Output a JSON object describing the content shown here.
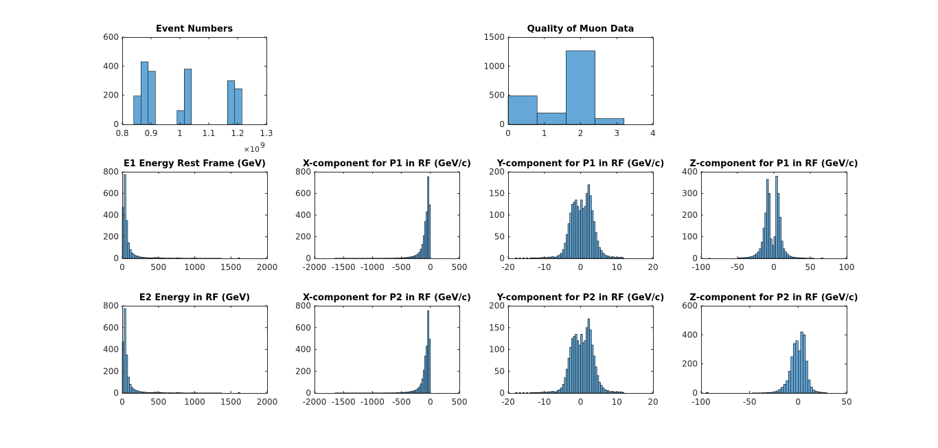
{
  "figure": {
    "background": "#ffffff",
    "bar_color": "#65a8d8",
    "edge_color": "#000000"
  },
  "chart_data": [
    {
      "type": "bar",
      "title": "Event Numbers",
      "xlim": [
        0.8,
        1.3
      ],
      "ylim": [
        0,
        600
      ],
      "xticks": [
        0.8,
        0.9,
        1,
        1.1,
        1.2,
        1.3
      ],
      "xtick_labels": [
        "0.8",
        "0.9",
        "1",
        "1.1",
        "1.2",
        "1.3"
      ],
      "yticks": [
        0,
        200,
        400,
        600
      ],
      "ytick_labels": [
        "0",
        "200",
        "400",
        "600"
      ],
      "x_exponent_label": "×10",
      "x_exponent_power": "9",
      "bin_edges": [
        0.84,
        0.865,
        0.89,
        0.915,
        0.94,
        0.965,
        0.99,
        1.015,
        1.04,
        1.065,
        1.09,
        1.115,
        1.14,
        1.165,
        1.19,
        1.215,
        1.24
      ],
      "values": [
        195,
        430,
        365,
        0,
        0,
        0,
        95,
        380,
        0,
        0,
        0,
        0,
        0,
        300,
        245,
        0
      ]
    },
    {
      "type": "bar",
      "title": "Quality of Muon Data",
      "xlim": [
        0,
        4
      ],
      "ylim": [
        0,
        1500
      ],
      "xticks": [
        0,
        1,
        2,
        3,
        4
      ],
      "xtick_labels": [
        "0",
        "1",
        "2",
        "3",
        "4"
      ],
      "yticks": [
        0,
        500,
        1000,
        1500
      ],
      "ytick_labels": [
        "0",
        "500",
        "1000",
        "1500"
      ],
      "bin_edges": [
        0,
        0.8,
        1.6,
        2.4,
        3.2
      ],
      "values": [
        490,
        195,
        1265,
        100
      ]
    },
    {
      "type": "bar",
      "title": "E1 Energy Rest Frame (GeV)",
      "xlim": [
        0,
        2000
      ],
      "ylim": [
        0,
        800
      ],
      "xticks": [
        0,
        500,
        1000,
        1500,
        2000
      ],
      "xtick_labels": [
        "0",
        "500",
        "1000",
        "1500",
        "2000"
      ],
      "yticks": [
        0,
        200,
        400,
        600,
        800
      ],
      "ytick_labels": [
        "0",
        "200",
        "400",
        "600",
        "800"
      ],
      "bin_edges": [
        0,
        25,
        50,
        75,
        100,
        125,
        150,
        175,
        200,
        225,
        250,
        275,
        300,
        325,
        350,
        375,
        400,
        425,
        450,
        475,
        500,
        525,
        550,
        575,
        600,
        625,
        650,
        675,
        700,
        725,
        750,
        775,
        800,
        825,
        850,
        875,
        900,
        925,
        950,
        975,
        1000,
        1025,
        1050,
        1075,
        1100,
        1125,
        1150,
        1175,
        1200,
        1225,
        1250,
        1275,
        1300,
        1325,
        1350,
        1375,
        1400,
        1425,
        1450,
        1475,
        1500,
        1525,
        1550,
        1575,
        1600,
        1625,
        1650
      ],
      "values": [
        470,
        775,
        350,
        145,
        80,
        50,
        35,
        25,
        20,
        15,
        12,
        10,
        8,
        6,
        5,
        5,
        4,
        6,
        8,
        7,
        5,
        4,
        3,
        3,
        2,
        2,
        3,
        2,
        2,
        2,
        5,
        3,
        2,
        2,
        1,
        1,
        1,
        1,
        2,
        2,
        3,
        1,
        1,
        1,
        1,
        1,
        1,
        1,
        1,
        1,
        1,
        1,
        1,
        1,
        1,
        0,
        0,
        0,
        0,
        0,
        0,
        0,
        0,
        0,
        4,
        0
      ]
    },
    {
      "type": "bar",
      "title": "X-component for P1 in RF (GeV/c)",
      "xlim": [
        -2000,
        500
      ],
      "ylim": [
        0,
        800
      ],
      "xticks": [
        -2000,
        -1500,
        -1000,
        -500,
        0,
        500
      ],
      "xtick_labels": [
        "-2000",
        "-1500",
        "-1000",
        "-500",
        "0",
        "500"
      ],
      "yticks": [
        0,
        200,
        400,
        600,
        800
      ],
      "ytick_labels": [
        "0",
        "200",
        "400",
        "600",
        "800"
      ],
      "bin_edges": [
        -1650,
        -1625,
        -1600,
        -1575,
        -1550,
        -1525,
        -1500,
        -1475,
        -1450,
        -1425,
        -1400,
        -1375,
        -1350,
        -1325,
        -1300,
        -1275,
        -1250,
        -1225,
        -1200,
        -1175,
        -1150,
        -1125,
        -1100,
        -1075,
        -1050,
        -1025,
        -1000,
        -975,
        -950,
        -925,
        -900,
        -875,
        -850,
        -825,
        -800,
        -775,
        -750,
        -725,
        -700,
        -675,
        -650,
        -625,
        -600,
        -575,
        -550,
        -525,
        -500,
        -475,
        -450,
        -425,
        -400,
        -375,
        -350,
        -325,
        -300,
        -275,
        -250,
        -225,
        -200,
        -175,
        -150,
        -125,
        -100,
        -75,
        -50,
        -25,
        0
      ],
      "values": [
        1,
        2,
        1,
        1,
        1,
        1,
        2,
        1,
        1,
        1,
        1,
        1,
        1,
        1,
        1,
        1,
        1,
        1,
        1,
        1,
        1,
        1,
        1,
        1,
        1,
        1,
        2,
        1,
        1,
        1,
        1,
        1,
        1,
        1,
        2,
        2,
        1,
        2,
        1,
        2,
        2,
        2,
        3,
        3,
        3,
        4,
        5,
        6,
        7,
        8,
        10,
        12,
        14,
        17,
        20,
        25,
        32,
        42,
        58,
        85,
        130,
        210,
        340,
        430,
        755,
        495
      ]
    },
    {
      "type": "bar",
      "title": "Y-component for P1 in RF (GeV/c)",
      "xlim": [
        -20,
        20
      ],
      "ylim": [
        0,
        200
      ],
      "xticks": [
        -20,
        -10,
        0,
        10,
        20
      ],
      "xtick_labels": [
        "-20",
        "-10",
        "0",
        "10",
        "20"
      ],
      "yticks": [
        0,
        50,
        100,
        150,
        200
      ],
      "ytick_labels": [
        "0",
        "50",
        "100",
        "150",
        "200"
      ],
      "bin_edges": [
        -18,
        -17.5,
        -17,
        -16.5,
        -16,
        -15.5,
        -15,
        -14.5,
        -14,
        -13.5,
        -13,
        -12.5,
        -12,
        -11.5,
        -11,
        -10.5,
        -10,
        -9.5,
        -9,
        -8.5,
        -8,
        -7.5,
        -7,
        -6.5,
        -6,
        -5.5,
        -5,
        -4.5,
        -4,
        -3.5,
        -3,
        -2.5,
        -2,
        -1.5,
        -1,
        -0.5,
        0,
        0.5,
        1,
        1.5,
        2,
        2.5,
        3,
        3.5,
        4,
        4.5,
        5,
        5.5,
        6,
        6.5,
        7,
        7.5,
        8,
        8.5,
        9,
        9.5,
        10,
        10.5,
        11,
        11.5,
        12
      ],
      "values": [
        1,
        0,
        1,
        0,
        1,
        0,
        1,
        0,
        1,
        1,
        1,
        1,
        1,
        1,
        2,
        2,
        2,
        2,
        3,
        3,
        4,
        3,
        3,
        6,
        8,
        12,
        20,
        35,
        55,
        80,
        105,
        125,
        130,
        135,
        120,
        110,
        135,
        115,
        120,
        150,
        170,
        145,
        110,
        85,
        60,
        40,
        25,
        18,
        12,
        8,
        6,
        5,
        3,
        4,
        3,
        2,
        3,
        2,
        3,
        1
      ]
    },
    {
      "type": "bar",
      "title": "Z-component for P1 in RF (GeV/c)",
      "xlim": [
        -100,
        100
      ],
      "ylim": [
        0,
        400
      ],
      "xticks": [
        -100,
        -50,
        0,
        50,
        100
      ],
      "xtick_labels": [
        "-100",
        "-50",
        "0",
        "50",
        "100"
      ],
      "yticks": [
        0,
        100,
        200,
        300,
        400
      ],
      "ytick_labels": [
        "0",
        "100",
        "200",
        "300",
        "400"
      ],
      "bin_edges": [
        -90,
        -87.5,
        -85,
        -82.5,
        -80,
        -77.5,
        -75,
        -72.5,
        -70,
        -67.5,
        -65,
        -62.5,
        -60,
        -57.5,
        -55,
        -52.5,
        -50,
        -47.5,
        -45,
        -42.5,
        -40,
        -37.5,
        -35,
        -32.5,
        -30,
        -27.5,
        -25,
        -22.5,
        -20,
        -17.5,
        -15,
        -12.5,
        -10,
        -7.5,
        -5,
        -2.5,
        0,
        2.5,
        5,
        7.5,
        10,
        12.5,
        15,
        17.5,
        20,
        22.5,
        25,
        27.5,
        30,
        32.5,
        35,
        37.5,
        40,
        42.5,
        45,
        47.5,
        50,
        52.5,
        55,
        57.5,
        60,
        62.5,
        65,
        67.5
      ],
      "values": [
        1,
        0,
        0,
        0,
        0,
        0,
        0,
        0,
        0,
        0,
        0,
        0,
        0,
        0,
        0,
        0,
        2,
        2,
        3,
        3,
        4,
        5,
        6,
        8,
        10,
        15,
        22,
        30,
        45,
        75,
        140,
        210,
        365,
        300,
        90,
        60,
        100,
        380,
        300,
        190,
        80,
        45,
        30,
        20,
        12,
        8,
        6,
        5,
        4,
        3,
        2,
        2,
        2,
        1,
        1,
        1,
        1,
        1,
        0,
        0,
        0,
        0,
        2
      ]
    },
    {
      "type": "bar",
      "title": "E2 Energy in RF (GeV)",
      "xlim": [
        0,
        2000
      ],
      "ylim": [
        0,
        800
      ],
      "xticks": [
        0,
        500,
        1000,
        1500,
        2000
      ],
      "xtick_labels": [
        "0",
        "500",
        "1000",
        "1500",
        "2000"
      ],
      "yticks": [
        0,
        200,
        400,
        600,
        800
      ],
      "ytick_labels": [
        "0",
        "200",
        "400",
        "600",
        "800"
      ],
      "bin_edges": [
        0,
        25,
        50,
        75,
        100,
        125,
        150,
        175,
        200,
        225,
        250,
        275,
        300,
        325,
        350,
        375,
        400,
        425,
        450,
        475,
        500,
        525,
        550,
        575,
        600,
        625,
        650,
        675,
        700,
        725,
        750,
        775,
        800,
        825,
        850,
        875,
        900,
        925,
        950,
        975,
        1000,
        1025,
        1050,
        1075,
        1100,
        1125,
        1150,
        1175,
        1200,
        1225,
        1250,
        1275,
        1300,
        1325,
        1350,
        1375,
        1400,
        1425,
        1450,
        1475,
        1500,
        1525,
        1550,
        1575,
        1600,
        1625,
        1650
      ],
      "values": [
        470,
        775,
        350,
        145,
        80,
        50,
        35,
        25,
        20,
        15,
        12,
        10,
        8,
        6,
        5,
        5,
        4,
        6,
        8,
        7,
        5,
        4,
        3,
        3,
        2,
        2,
        3,
        2,
        2,
        2,
        5,
        3,
        2,
        2,
        1,
        1,
        1,
        1,
        2,
        2,
        3,
        1,
        1,
        1,
        1,
        1,
        1,
        1,
        1,
        1,
        1,
        1,
        1,
        1,
        1,
        0,
        0,
        0,
        0,
        0,
        0,
        0,
        0,
        0,
        4,
        0
      ]
    },
    {
      "type": "bar",
      "title": "X-component for P2 in RF (GeV/c)",
      "xlim": [
        -2000,
        500
      ],
      "ylim": [
        0,
        800
      ],
      "xticks": [
        -2000,
        -1500,
        -1000,
        -500,
        0,
        500
      ],
      "xtick_labels": [
        "-2000",
        "-1500",
        "-1000",
        "-500",
        "0",
        "500"
      ],
      "yticks": [
        0,
        200,
        400,
        600,
        800
      ],
      "ytick_labels": [
        "0",
        "200",
        "400",
        "600",
        "800"
      ],
      "bin_edges": [
        -1650,
        -1625,
        -1600,
        -1575,
        -1550,
        -1525,
        -1500,
        -1475,
        -1450,
        -1425,
        -1400,
        -1375,
        -1350,
        -1325,
        -1300,
        -1275,
        -1250,
        -1225,
        -1200,
        -1175,
        -1150,
        -1125,
        -1100,
        -1075,
        -1050,
        -1025,
        -1000,
        -975,
        -950,
        -925,
        -900,
        -875,
        -850,
        -825,
        -800,
        -775,
        -750,
        -725,
        -700,
        -675,
        -650,
        -625,
        -600,
        -575,
        -550,
        -525,
        -500,
        -475,
        -450,
        -425,
        -400,
        -375,
        -350,
        -325,
        -300,
        -275,
        -250,
        -225,
        -200,
        -175,
        -150,
        -125,
        -100,
        -75,
        -50,
        -25,
        0
      ],
      "values": [
        1,
        2,
        1,
        1,
        1,
        1,
        2,
        1,
        1,
        1,
        1,
        1,
        1,
        1,
        1,
        1,
        1,
        1,
        1,
        1,
        1,
        1,
        1,
        1,
        1,
        1,
        2,
        1,
        1,
        1,
        1,
        1,
        1,
        1,
        2,
        2,
        1,
        2,
        1,
        2,
        2,
        2,
        3,
        3,
        3,
        4,
        5,
        6,
        7,
        8,
        10,
        12,
        14,
        17,
        20,
        25,
        32,
        42,
        58,
        85,
        130,
        210,
        340,
        430,
        755,
        495
      ]
    },
    {
      "type": "bar",
      "title": "Y-component for P2 in RF (GeV/c)",
      "xlim": [
        -20,
        20
      ],
      "ylim": [
        0,
        200
      ],
      "xticks": [
        -20,
        -10,
        0,
        10,
        20
      ],
      "xtick_labels": [
        "-20",
        "-10",
        "0",
        "10",
        "20"
      ],
      "yticks": [
        0,
        50,
        100,
        150,
        200
      ],
      "ytick_labels": [
        "0",
        "50",
        "100",
        "150",
        "200"
      ],
      "bin_edges": [
        -18,
        -17.5,
        -17,
        -16.5,
        -16,
        -15.5,
        -15,
        -14.5,
        -14,
        -13.5,
        -13,
        -12.5,
        -12,
        -11.5,
        -11,
        -10.5,
        -10,
        -9.5,
        -9,
        -8.5,
        -8,
        -7.5,
        -7,
        -6.5,
        -6,
        -5.5,
        -5,
        -4.5,
        -4,
        -3.5,
        -3,
        -2.5,
        -2,
        -1.5,
        -1,
        -0.5,
        0,
        0.5,
        1,
        1.5,
        2,
        2.5,
        3,
        3.5,
        4,
        4.5,
        5,
        5.5,
        6,
        6.5,
        7,
        7.5,
        8,
        8.5,
        9,
        9.5,
        10,
        10.5,
        11,
        11.5,
        12
      ],
      "values": [
        1,
        0,
        1,
        0,
        1,
        0,
        1,
        0,
        1,
        1,
        1,
        1,
        1,
        1,
        2,
        2,
        2,
        2,
        3,
        3,
        4,
        3,
        3,
        6,
        8,
        12,
        20,
        35,
        55,
        80,
        105,
        125,
        130,
        135,
        120,
        110,
        135,
        115,
        120,
        150,
        170,
        145,
        110,
        85,
        60,
        40,
        25,
        18,
        12,
        8,
        6,
        5,
        3,
        4,
        3,
        2,
        3,
        2,
        3,
        1
      ]
    },
    {
      "type": "bar",
      "title": "Z-component for P2 in RF (GeV/c)",
      "xlim": [
        -100,
        50
      ],
      "ylim": [
        0,
        600
      ],
      "xticks": [
        -100,
        -50,
        0,
        50
      ],
      "xtick_labels": [
        "-100",
        "-50",
        "0",
        "50"
      ],
      "yticks": [
        0,
        200,
        400,
        600
      ],
      "ytick_labels": [
        "0",
        "200",
        "400",
        "600"
      ],
      "bin_edges": [
        -95,
        -92.5,
        -90,
        -87.5,
        -85,
        -82.5,
        -80,
        -77.5,
        -75,
        -72.5,
        -70,
        -67.5,
        -65,
        -62.5,
        -60,
        -57.5,
        -55,
        -52.5,
        -50,
        -47.5,
        -45,
        -42.5,
        -40,
        -37.5,
        -35,
        -32.5,
        -30,
        -27.5,
        -25,
        -22.5,
        -20,
        -17.5,
        -15,
        -12.5,
        -10,
        -7.5,
        -5,
        -2.5,
        0,
        2.5,
        5,
        7.5,
        10,
        12.5,
        15,
        17.5,
        20,
        22.5,
        25,
        27.5,
        30
      ],
      "values": [
        3,
        0,
        0,
        0,
        0,
        0,
        0,
        0,
        0,
        0,
        0,
        0,
        0,
        0,
        0,
        0,
        0,
        0,
        0,
        1,
        1,
        1,
        1,
        2,
        2,
        3,
        4,
        6,
        10,
        15,
        25,
        40,
        60,
        85,
        150,
        250,
        340,
        360,
        290,
        420,
        400,
        220,
        90,
        40,
        20,
        12,
        8,
        5,
        3,
        2
      ]
    }
  ]
}
